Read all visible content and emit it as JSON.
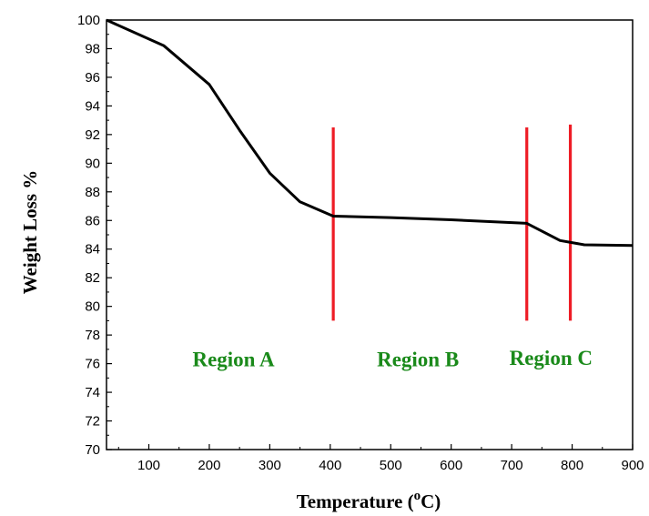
{
  "chart_data": {
    "type": "line",
    "xlabel": "Temperature (",
    "xlabel_unit_sup": "o",
    "xlabel_unit_tail": "C)",
    "ylabel": "Weight Loss %",
    "xlim": [
      30,
      900
    ],
    "ylim": [
      70,
      100
    ],
    "x_ticks": [
      100,
      200,
      300,
      400,
      500,
      600,
      700,
      800,
      900
    ],
    "y_ticks": [
      70,
      72,
      74,
      76,
      78,
      80,
      82,
      84,
      86,
      88,
      90,
      92,
      94,
      96,
      98,
      100
    ],
    "grid": false,
    "series": [
      {
        "color": "#000000",
        "x": [
          30,
          125,
          200,
          250,
          300,
          350,
          405,
          500,
          600,
          725,
          780,
          820,
          900
        ],
        "y": [
          100,
          98.2,
          95.5,
          92.3,
          89.3,
          87.3,
          86.3,
          86.2,
          86.05,
          85.8,
          84.6,
          84.3,
          84.25
        ]
      }
    ],
    "markers": [
      {
        "x": 405,
        "y1": 79,
        "y2": 92.5,
        "color": "#ee1c25"
      },
      {
        "x": 725,
        "y1": 79,
        "y2": 92.5,
        "color": "#ee1c25"
      },
      {
        "x": 797,
        "y1": 79,
        "y2": 92.7,
        "color": "#ee1c25"
      }
    ],
    "annotations": [
      {
        "text": "Region A",
        "x": 240,
        "y": 75.8,
        "color": "#1a8a1a"
      },
      {
        "text": "Region B",
        "x": 545,
        "y": 75.8,
        "color": "#1a8a1a"
      },
      {
        "text": "Region C",
        "x": 765,
        "y": 75.9,
        "color": "#1a8a1a"
      }
    ]
  }
}
